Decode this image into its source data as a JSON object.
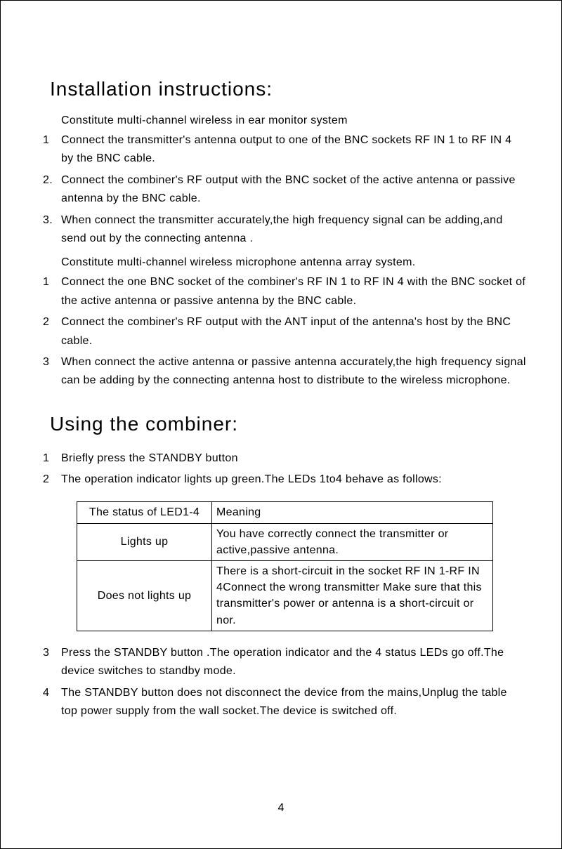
{
  "page": {
    "number": "4",
    "background_color": "#ffffff",
    "text_color": "#000000",
    "border_color": "#000000"
  },
  "section1": {
    "title": "Installation instructions:",
    "intro1": "Constitute multi-channel wireless in ear monitor system",
    "items1": [
      {
        "num": "1",
        "text": "Connect the transmitter's antenna output to one of the BNC sockets RF IN 1 to RF IN 4 by the BNC cable."
      },
      {
        "num": "2.",
        "text": "Connect the combiner's RF output with the BNC socket of the active antenna or passive antenna by the BNC cable."
      },
      {
        "num": "3.",
        "text": "When connect the transmitter accurately,the high frequency signal can be adding,and send out by the connecting antenna ."
      }
    ],
    "intro2": "Constitute multi-channel wireless microphone antenna array system.",
    "items2": [
      {
        "num": "1",
        "text": "Connect the one BNC socket of the combiner's RF IN 1 to RF IN 4 with the BNC socket of the active antenna or passive antenna by the BNC cable."
      },
      {
        "num": "2",
        "text": "Connect the combiner's RF output with the ANT input of the antenna's host by the BNC cable."
      },
      {
        "num": "3",
        "text": "When connect the active antenna or passive antenna accurately,the high frequency signal can be adding  by the connecting antenna host to distribute to the wireless microphone."
      }
    ]
  },
  "section2": {
    "title": "Using the combiner:",
    "items_pre": [
      {
        "num": "1",
        "text": "Briefly press the STANDBY button"
      },
      {
        "num": "2",
        "text": "The operation indicator lights up green.The LEDs 1to4 behave as follows:"
      }
    ],
    "table": {
      "header": [
        "The status of LED1-4",
        "Meaning"
      ],
      "rows": [
        [
          "Lights up",
          "You have correctly connect the transmitter or active,passive antenna."
        ],
        [
          "Does not lights up",
          "There is a short-circuit in the socket RF IN 1-RF IN 4Connect the wrong transmitter Make sure that this transmitter's power or antenna is a short-circuit or nor."
        ]
      ]
    },
    "items_post": [
      {
        "num": "3",
        "text": "Press the STANDBY button .The operation indicator and the 4 status LEDs go off.The device switches to standby mode."
      },
      {
        "num": "4",
        "text": "The STANDBY button does not disconnect the device from the mains,Unplug the table top power supply from the wall socket.The device is switched off."
      }
    ]
  }
}
